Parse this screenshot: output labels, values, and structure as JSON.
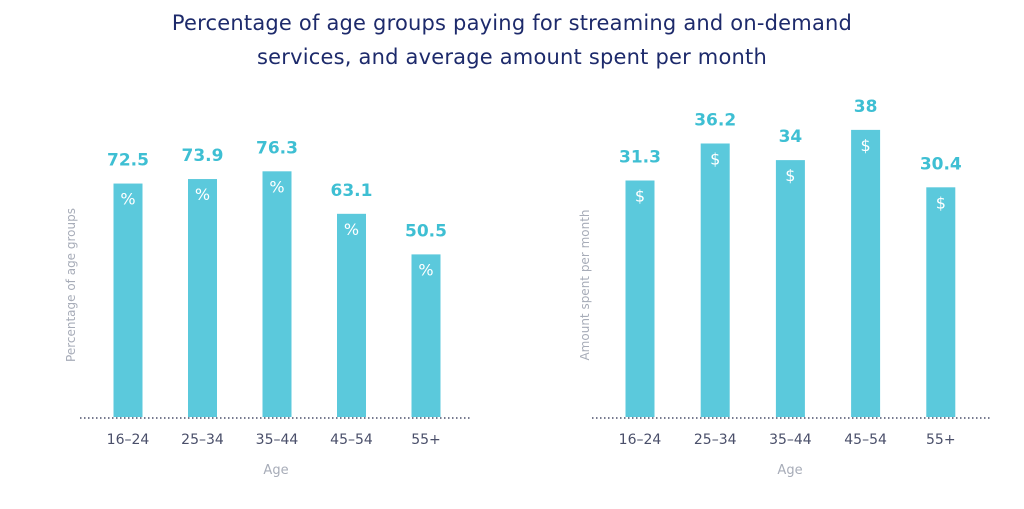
{
  "title_lines": [
    "Percentage of age groups paying for streaming and on-demand",
    "services, and average amount spent per month"
  ],
  "colors": {
    "bar": "#5bc9dc",
    "value": "#3ebfd3",
    "title": "#1d2a6b",
    "axis": "#a7acb8",
    "tick": "#4a4f6a"
  },
  "chart_data": [
    {
      "type": "bar",
      "categories": [
        "16–24",
        "25–34",
        "35–44",
        "45–54",
        "55+"
      ],
      "values": [
        72.5,
        73.9,
        76.3,
        63.1,
        50.5
      ],
      "value_labels": [
        "72.5",
        "73.9",
        "76.3",
        "63.1",
        "50.5"
      ],
      "unit_symbol": "%",
      "xlabel": "Age",
      "ylabel": "Percentage of age groups",
      "ylim": [
        0,
        100
      ],
      "grid": false
    },
    {
      "type": "bar",
      "categories": [
        "16–24",
        "25–34",
        "35–44",
        "45–54",
        "55+"
      ],
      "values": [
        31.3,
        36.2,
        34,
        38,
        30.4
      ],
      "value_labels": [
        "31.3",
        "36.2",
        "34",
        "38",
        "30.4"
      ],
      "unit_symbol": "$",
      "xlabel": "Age",
      "ylabel": "Amount spent per month",
      "ylim": [
        0,
        45
      ],
      "grid": false
    }
  ]
}
